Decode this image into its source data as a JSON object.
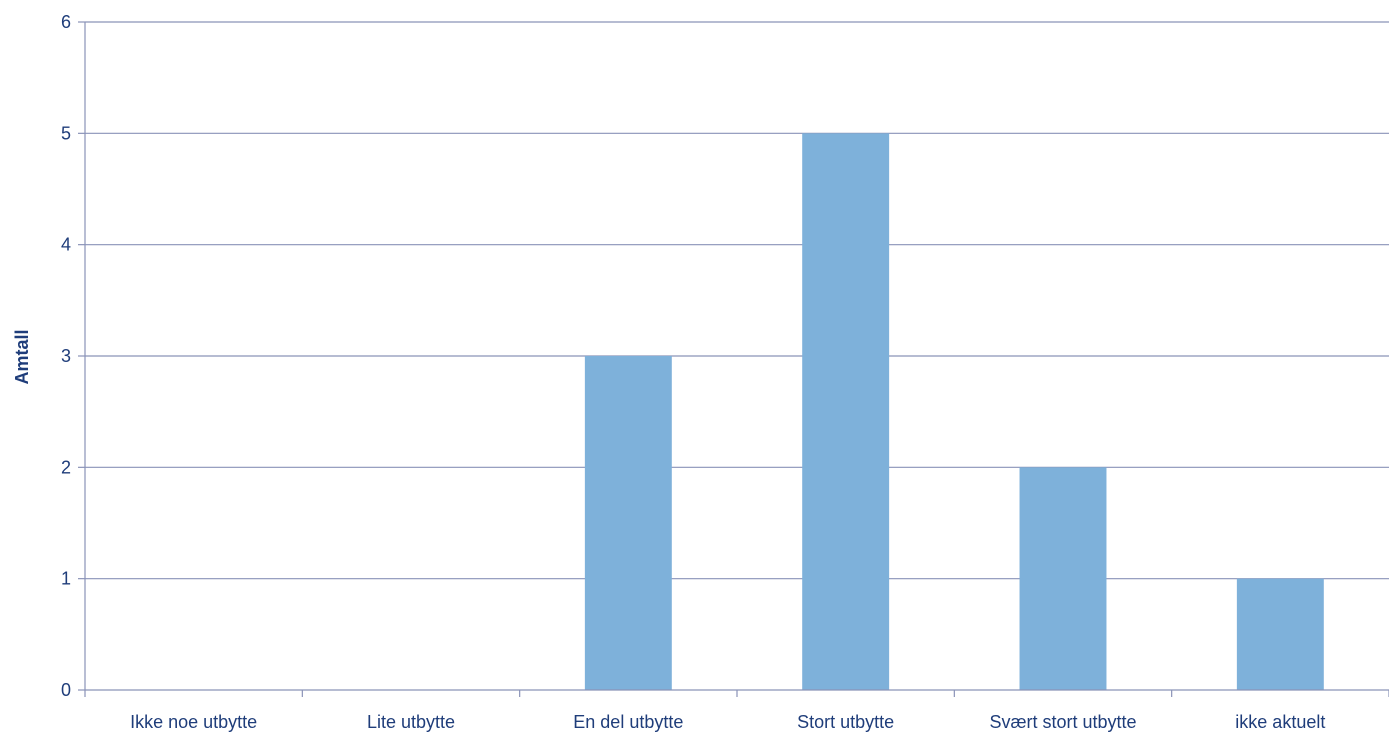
{
  "chart_data": {
    "type": "bar",
    "categories": [
      "Ikke noe utbytte",
      "Lite utbytte",
      "En del utbytte",
      "Stort utbytte",
      "Svært stort utbytte",
      "ikke aktuelt"
    ],
    "values": [
      0,
      0,
      3,
      5,
      2,
      1
    ],
    "xlabel": "",
    "ylabel": "Amtall",
    "ylim": [
      0,
      6
    ],
    "yticks": [
      0,
      1,
      2,
      3,
      4,
      5,
      6
    ],
    "grid": true,
    "colors": {
      "bar": "#7eb1da",
      "gridline": "#8a93b8",
      "axis": "#8a93b8",
      "text": "#1f3d7a"
    }
  }
}
